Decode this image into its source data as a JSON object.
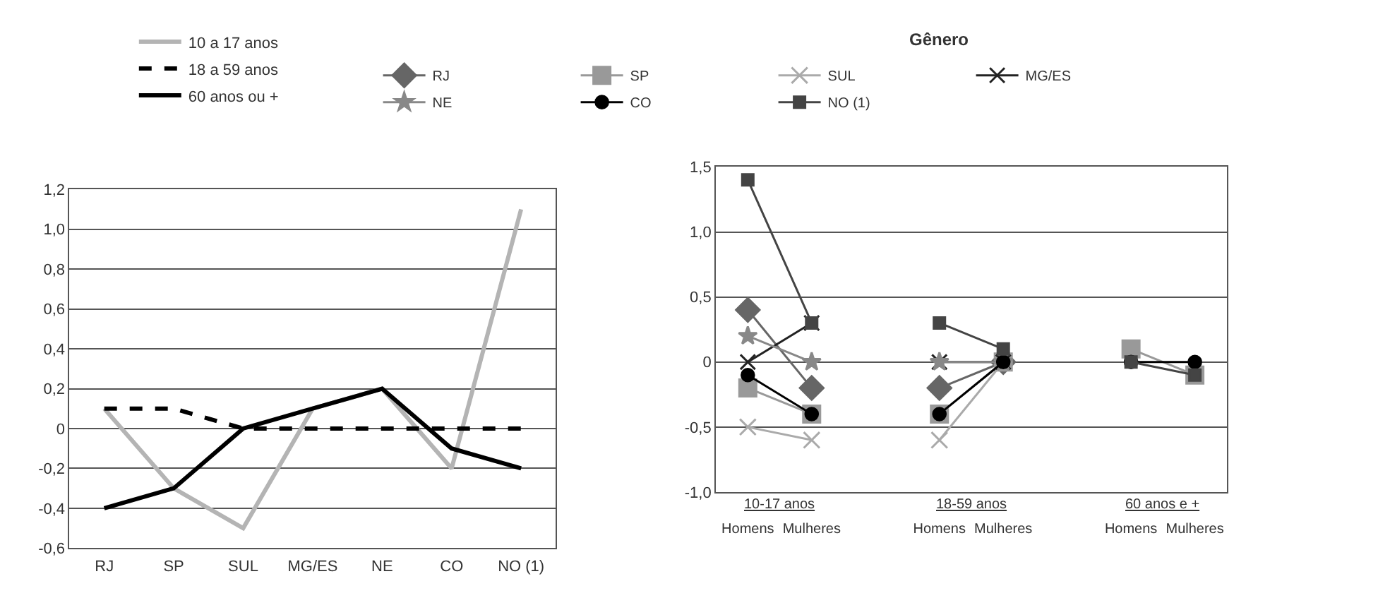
{
  "chart_data": [
    {
      "type": "line",
      "categories": [
        "RJ",
        "SP",
        "SUL",
        "MG/ES",
        "NE",
        "CO",
        "NO (1)"
      ],
      "ylim": [
        -0.6,
        1.2
      ],
      "yticks": [
        {
          "value": -0.6,
          "label": "-0,6"
        },
        {
          "value": -0.4,
          "label": "-0,4"
        },
        {
          "value": -0.2,
          "label": "-0,2"
        },
        0,
        {
          "value": 0.2,
          "label": "0,2"
        },
        {
          "value": 0.4,
          "label": "0,4"
        },
        {
          "value": 0.6,
          "label": "0,6"
        },
        {
          "value": 0.8,
          "label": "0,8"
        },
        {
          "value": 1.0,
          "label": "1,0"
        },
        {
          "value": 1.2,
          "label": "1,2"
        }
      ],
      "grid": "y",
      "legend": "top",
      "marker": "none",
      "series": [
        {
          "name": "10 a 17 anos",
          "color": "#b4b4b4",
          "line_style": "solid",
          "values": [
            0.1,
            -0.3,
            -0.5,
            0.1,
            0.2,
            -0.2,
            1.1
          ]
        },
        {
          "name": "18 a 59 anos",
          "color": "#000000",
          "line_style": "dashed",
          "values": [
            0.1,
            0.1,
            0.0,
            0.0,
            0.0,
            0.0,
            0.0
          ]
        },
        {
          "name": "60 anos ou +",
          "color": "#000000",
          "line_style": "solid",
          "values": [
            -0.4,
            -0.3,
            0.0,
            0.1,
            0.2,
            -0.1,
            -0.2
          ]
        }
      ]
    },
    {
      "type": "line",
      "title": "Gênero",
      "categories": [
        "Homens",
        "Mulheres",
        null,
        "Homens",
        "Mulheres",
        null,
        "Homens",
        "Mulheres"
      ],
      "annotations": [
        "10-17 anos",
        "18-59 anos",
        "60 anos e +"
      ],
      "ylim": [
        -1.0,
        1.5
      ],
      "yticks": [
        {
          "value": -1.0,
          "label": "-1,0"
        },
        {
          "value": -0.5,
          "label": "-0,5"
        },
        0,
        {
          "value": 0.5,
          "label": "0,5"
        },
        {
          "value": 1.0,
          "label": "1,0"
        },
        {
          "value": 1.5,
          "label": "1,5"
        }
      ],
      "grid": "y",
      "legend": "top",
      "series": [
        {
          "name": "RJ",
          "color": "#666666",
          "marker": "diamond",
          "values": [
            0.4,
            -0.2,
            null,
            -0.2,
            0.0,
            null,
            null,
            null
          ]
        },
        {
          "name": "SP",
          "color": "#999999",
          "marker": "square",
          "values": [
            -0.2,
            -0.4,
            null,
            -0.4,
            0.0,
            null,
            0.1,
            -0.1
          ]
        },
        {
          "name": "SUL",
          "color": "#aaaaaa",
          "marker": "cross",
          "values": [
            -0.5,
            -0.6,
            null,
            -0.6,
            0.0,
            null,
            null,
            null
          ]
        },
        {
          "name": "MG/ES",
          "color": "#222222",
          "marker": "cross",
          "values": [
            0.0,
            0.3,
            null,
            0.0,
            0.0,
            null,
            null,
            null
          ]
        },
        {
          "name": "NE",
          "color": "#888888",
          "marker": "star",
          "values": [
            0.2,
            0.0,
            null,
            0.0,
            0.0,
            null,
            null,
            null
          ]
        },
        {
          "name": "CO",
          "color": "#000000",
          "marker": "circle",
          "values": [
            -0.1,
            -0.4,
            null,
            -0.4,
            0.0,
            null,
            0.0,
            0.0
          ]
        },
        {
          "name": "NO (1)",
          "color": "#444444",
          "marker": "square",
          "values": [
            1.4,
            0.3,
            null,
            0.3,
            0.1,
            null,
            0.0,
            -0.1
          ]
        }
      ]
    }
  ]
}
